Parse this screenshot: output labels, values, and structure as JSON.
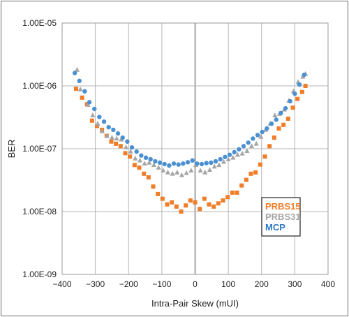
{
  "chart_data": {
    "type": "scatter",
    "title": "",
    "xlabel": "Intra-Pair Skew (mUI)",
    "ylabel": "BER",
    "xlim": [
      -400,
      400
    ],
    "ylim": [
      1e-09,
      1e-05
    ],
    "y_scale": "log",
    "grid": true,
    "x_ticks": [
      -400,
      -300,
      -200,
      -100,
      0,
      100,
      200,
      300,
      400
    ],
    "x_tick_labels": [
      "−400",
      "−300",
      "−200",
      "−100",
      "0",
      "100",
      "200",
      "300",
      "400"
    ],
    "y_ticks": [
      1e-09,
      1e-08,
      1e-07,
      1e-06,
      1e-05
    ],
    "y_tick_labels": [
      "1.00E-09",
      "1.00E-08",
      "1.00E-07",
      "1.00E-06",
      "1.00E-05"
    ],
    "legend_position": "bottom-right",
    "series": [
      {
        "name": "PRBS15",
        "marker": "square",
        "color": "#f07d28",
        "x": [
          -358,
          -340,
          -325,
          -310,
          -295,
          -280,
          -266,
          -252,
          -238,
          -224,
          -210,
          -196,
          -182,
          -168,
          -154,
          -140,
          -126,
          -112,
          -98,
          -84,
          -70,
          -56,
          -42,
          -28,
          -14,
          0,
          14,
          28,
          42,
          56,
          70,
          84,
          98,
          112,
          126,
          140,
          154,
          168,
          182,
          196,
          210,
          224,
          238,
          252,
          266,
          280,
          294,
          308,
          322,
          332
        ],
        "y": [
          9e-07,
          6.5e-07,
          5.1e-07,
          2.8e-07,
          2.3e-07,
          2e-07,
          1.6e-07,
          1.3e-07,
          1.2e-07,
          1.1e-07,
          8.5e-08,
          7.5e-08,
          5.5e-08,
          5e-08,
          4e-08,
          3.5e-08,
          2.5e-08,
          1.9e-08,
          1.6e-08,
          1.3e-08,
          1.4e-08,
          1.2e-08,
          1e-08,
          1.25e-08,
          1.5e-08,
          1.4e-08,
          1.1e-08,
          1.6e-08,
          1.3e-08,
          1.2e-08,
          1.35e-08,
          1.5e-08,
          1.7e-08,
          2e-08,
          2e-08,
          2.6e-08,
          3.2e-08,
          4e-08,
          4.2e-08,
          5.6e-08,
          7.5e-08,
          1.1e-07,
          1.5e-07,
          2.1e-07,
          2.4e-07,
          3e-07,
          4.5e-07,
          6.2e-07,
          8e-07,
          1e-06
        ]
      },
      {
        "name": "PRBS31",
        "marker": "triangle",
        "color": "#a6a6a6",
        "x": [
          -355,
          -345,
          -322,
          -308,
          -293,
          -280,
          -265,
          -250,
          -236,
          -222,
          -208,
          -194,
          -180,
          -166,
          -152,
          -138,
          -124,
          -110,
          -96,
          -82,
          -68,
          -54,
          -40,
          -26,
          -12,
          2,
          16,
          30,
          44,
          58,
          72,
          86,
          100,
          114,
          128,
          142,
          156,
          170,
          184,
          198,
          212,
          226,
          240,
          254,
          268,
          282,
          296,
          310,
          324,
          332
        ],
        "y": [
          1.8e-06,
          8.8e-07,
          5e-07,
          3.4e-07,
          2.5e-07,
          1.9e-07,
          1.6e-07,
          1.5e-07,
          1.45e-07,
          1.4e-07,
          1.05e-07,
          9e-08,
          7e-08,
          6.5e-08,
          5.8e-08,
          6e-08,
          5.5e-08,
          5e-08,
          4.5e-08,
          4.2e-08,
          4e-08,
          4.2e-08,
          3.8e-08,
          4.1e-08,
          4.5e-08,
          5.5e-08,
          4.5e-08,
          4.2e-08,
          4.6e-08,
          5.2e-08,
          5.5e-08,
          6.2e-08,
          6.8e-08,
          7.2e-08,
          8e-08,
          8.4e-08,
          9.2e-08,
          1.1e-07,
          1.2e-07,
          1.55e-07,
          2e-07,
          2.5e-07,
          3.4e-07,
          3.6e-07,
          4.2e-07,
          5.8e-07,
          8.2e-07,
          1.15e-06,
          1.4e-06,
          1.55e-06
        ]
      },
      {
        "name": "MCP",
        "marker": "circle",
        "color": "#4a90d2",
        "x": [
          -362,
          -348,
          -332,
          -318,
          -303,
          -288,
          -274,
          -260,
          -246,
          -232,
          -218,
          -204,
          -190,
          -176,
          -162,
          -148,
          -134,
          -120,
          -106,
          -92,
          -78,
          -64,
          -50,
          -36,
          -22,
          -8,
          6,
          20,
          34,
          48,
          62,
          76,
          90,
          104,
          118,
          132,
          146,
          160,
          174,
          188,
          202,
          216,
          230,
          244,
          258,
          272,
          286,
          300,
          314,
          328
        ],
        "y": [
          1.6e-06,
          1.2e-06,
          8.2e-07,
          5.5e-07,
          4.3e-07,
          3.2e-07,
          2.7e-07,
          2.2e-07,
          2e-07,
          1.75e-07,
          1.5e-07,
          1.3e-07,
          1.05e-07,
          9e-08,
          7.8e-08,
          7.2e-08,
          6.8e-08,
          6.3e-08,
          6e-08,
          5.7e-08,
          5.4e-08,
          5.8e-08,
          5.6e-08,
          5.8e-08,
          6.1e-08,
          6.5e-08,
          5.8e-08,
          5.7e-08,
          5.9e-08,
          6e-08,
          6.3e-08,
          6.8e-08,
          7.4e-08,
          8e-08,
          8.8e-08,
          9.8e-08,
          1.1e-07,
          1.25e-07,
          1.45e-07,
          1.65e-07,
          1.85e-07,
          2.1e-07,
          2.5e-07,
          2.9e-07,
          3.7e-07,
          4.4e-07,
          5.7e-07,
          7.5e-07,
          1.05e-06,
          1.5e-06
        ]
      }
    ]
  },
  "legend": {
    "labels": [
      "PRBS15",
      "PRBS31",
      "MCP"
    ],
    "colors": [
      "#f07d28",
      "#a6a6a6",
      "#2e78c5"
    ]
  },
  "style": {
    "gridColor": "#b5b5b5",
    "zeroLineColor": "#8c8c8c",
    "plotBorderColor": "#9a9a9a"
  }
}
